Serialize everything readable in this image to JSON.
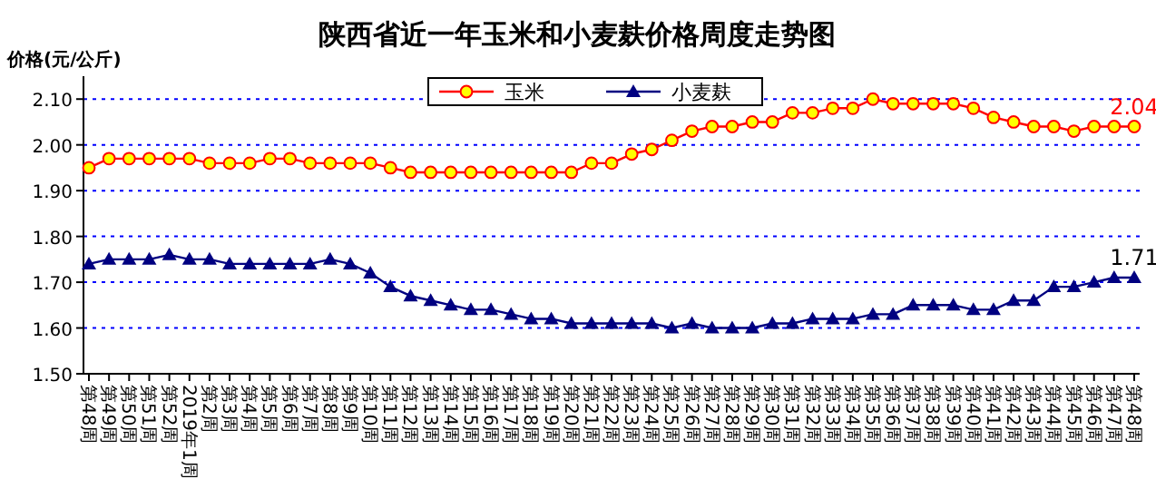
{
  "chart_data": {
    "type": "line",
    "title": "陕西省近一年玉米和小麦麸价格周度走势图",
    "ylabel": "价格(元/公斤)",
    "categories": [
      "第48周",
      "第49周",
      "第50周",
      "第51周",
      "第52周",
      "2019年1周",
      "第2周",
      "第3周",
      "第4周",
      "第5周",
      "第6周",
      "第7周",
      "第8周",
      "第9周",
      "第10周",
      "第11周",
      "第12周",
      "第13周",
      "第14周",
      "第15周",
      "第16周",
      "第17周",
      "第18周",
      "第19周",
      "第20周",
      "第21周",
      "第22周",
      "第23周",
      "第24周",
      "第25周",
      "第26周",
      "第27周",
      "第28周",
      "第29周",
      "第30周",
      "第31周",
      "第32周",
      "第33周",
      "第34周",
      "第35周",
      "第36周",
      "第37周",
      "第38周",
      "第39周",
      "第40周",
      "第41周",
      "第42周",
      "第43周",
      "第44周",
      "第45周",
      "第46周",
      "第47周",
      "第48周"
    ],
    "series": [
      {
        "name": "玉米",
        "color": "#ff0000",
        "marker": "circle",
        "values": [
          1.95,
          1.97,
          1.97,
          1.97,
          1.97,
          1.97,
          1.96,
          1.96,
          1.96,
          1.97,
          1.97,
          1.96,
          1.96,
          1.96,
          1.96,
          1.95,
          1.94,
          1.94,
          1.94,
          1.94,
          1.94,
          1.94,
          1.94,
          1.94,
          1.94,
          1.96,
          1.96,
          1.98,
          1.99,
          2.01,
          2.03,
          2.04,
          2.04,
          2.05,
          2.05,
          2.07,
          2.07,
          2.08,
          2.08,
          2.1,
          2.09,
          2.09,
          2.09,
          2.09,
          2.08,
          2.06,
          2.05,
          2.04,
          2.04,
          2.03,
          2.04,
          2.04,
          2.04
        ],
        "value_labels": [
          null,
          null,
          null,
          null,
          null,
          null,
          null,
          null,
          null,
          null,
          null,
          null,
          null,
          null,
          null,
          null,
          null,
          null,
          null,
          null,
          null,
          null,
          null,
          null,
          null,
          null,
          null,
          null,
          null,
          null,
          null,
          null,
          null,
          null,
          null,
          null,
          null,
          null,
          null,
          null,
          null,
          null,
          null,
          null,
          null,
          null,
          null,
          null,
          null,
          null,
          null,
          null,
          "2.04"
        ]
      },
      {
        "name": "小麦麸",
        "color": "#000080",
        "marker": "triangle",
        "values": [
          1.74,
          1.75,
          1.75,
          1.75,
          1.76,
          1.75,
          1.75,
          1.74,
          1.74,
          1.74,
          1.74,
          1.74,
          1.75,
          1.74,
          1.72,
          1.69,
          1.67,
          1.66,
          1.65,
          1.64,
          1.64,
          1.63,
          1.62,
          1.62,
          1.61,
          1.61,
          1.61,
          1.61,
          1.61,
          1.6,
          1.61,
          1.6,
          1.6,
          1.6,
          1.61,
          1.61,
          1.62,
          1.62,
          1.62,
          1.63,
          1.63,
          1.65,
          1.65,
          1.65,
          1.64,
          1.64,
          1.66,
          1.66,
          1.69,
          1.69,
          1.7,
          1.71,
          1.71
        ],
        "value_labels": [
          null,
          null,
          null,
          null,
          null,
          null,
          null,
          null,
          null,
          null,
          null,
          null,
          null,
          null,
          null,
          null,
          null,
          null,
          null,
          null,
          null,
          null,
          null,
          null,
          null,
          null,
          null,
          null,
          null,
          null,
          null,
          null,
          null,
          null,
          null,
          null,
          null,
          null,
          null,
          null,
          null,
          null,
          null,
          null,
          null,
          null,
          null,
          null,
          null,
          null,
          null,
          null,
          "1.71"
        ]
      }
    ],
    "ylim": [
      1.5,
      2.15
    ],
    "yticks": [
      {
        "value": 1.5,
        "label": "1.50"
      },
      {
        "value": 1.6,
        "label": "1.60"
      },
      {
        "value": 1.7,
        "label": "1.70"
      },
      {
        "value": 1.8,
        "label": "1.80"
      },
      {
        "value": 1.9,
        "label": "1.90"
      },
      {
        "value": 2.0,
        "label": "2.00"
      },
      {
        "value": 2.1,
        "label": "2.10"
      }
    ],
    "grid": "y",
    "legend": "top"
  }
}
